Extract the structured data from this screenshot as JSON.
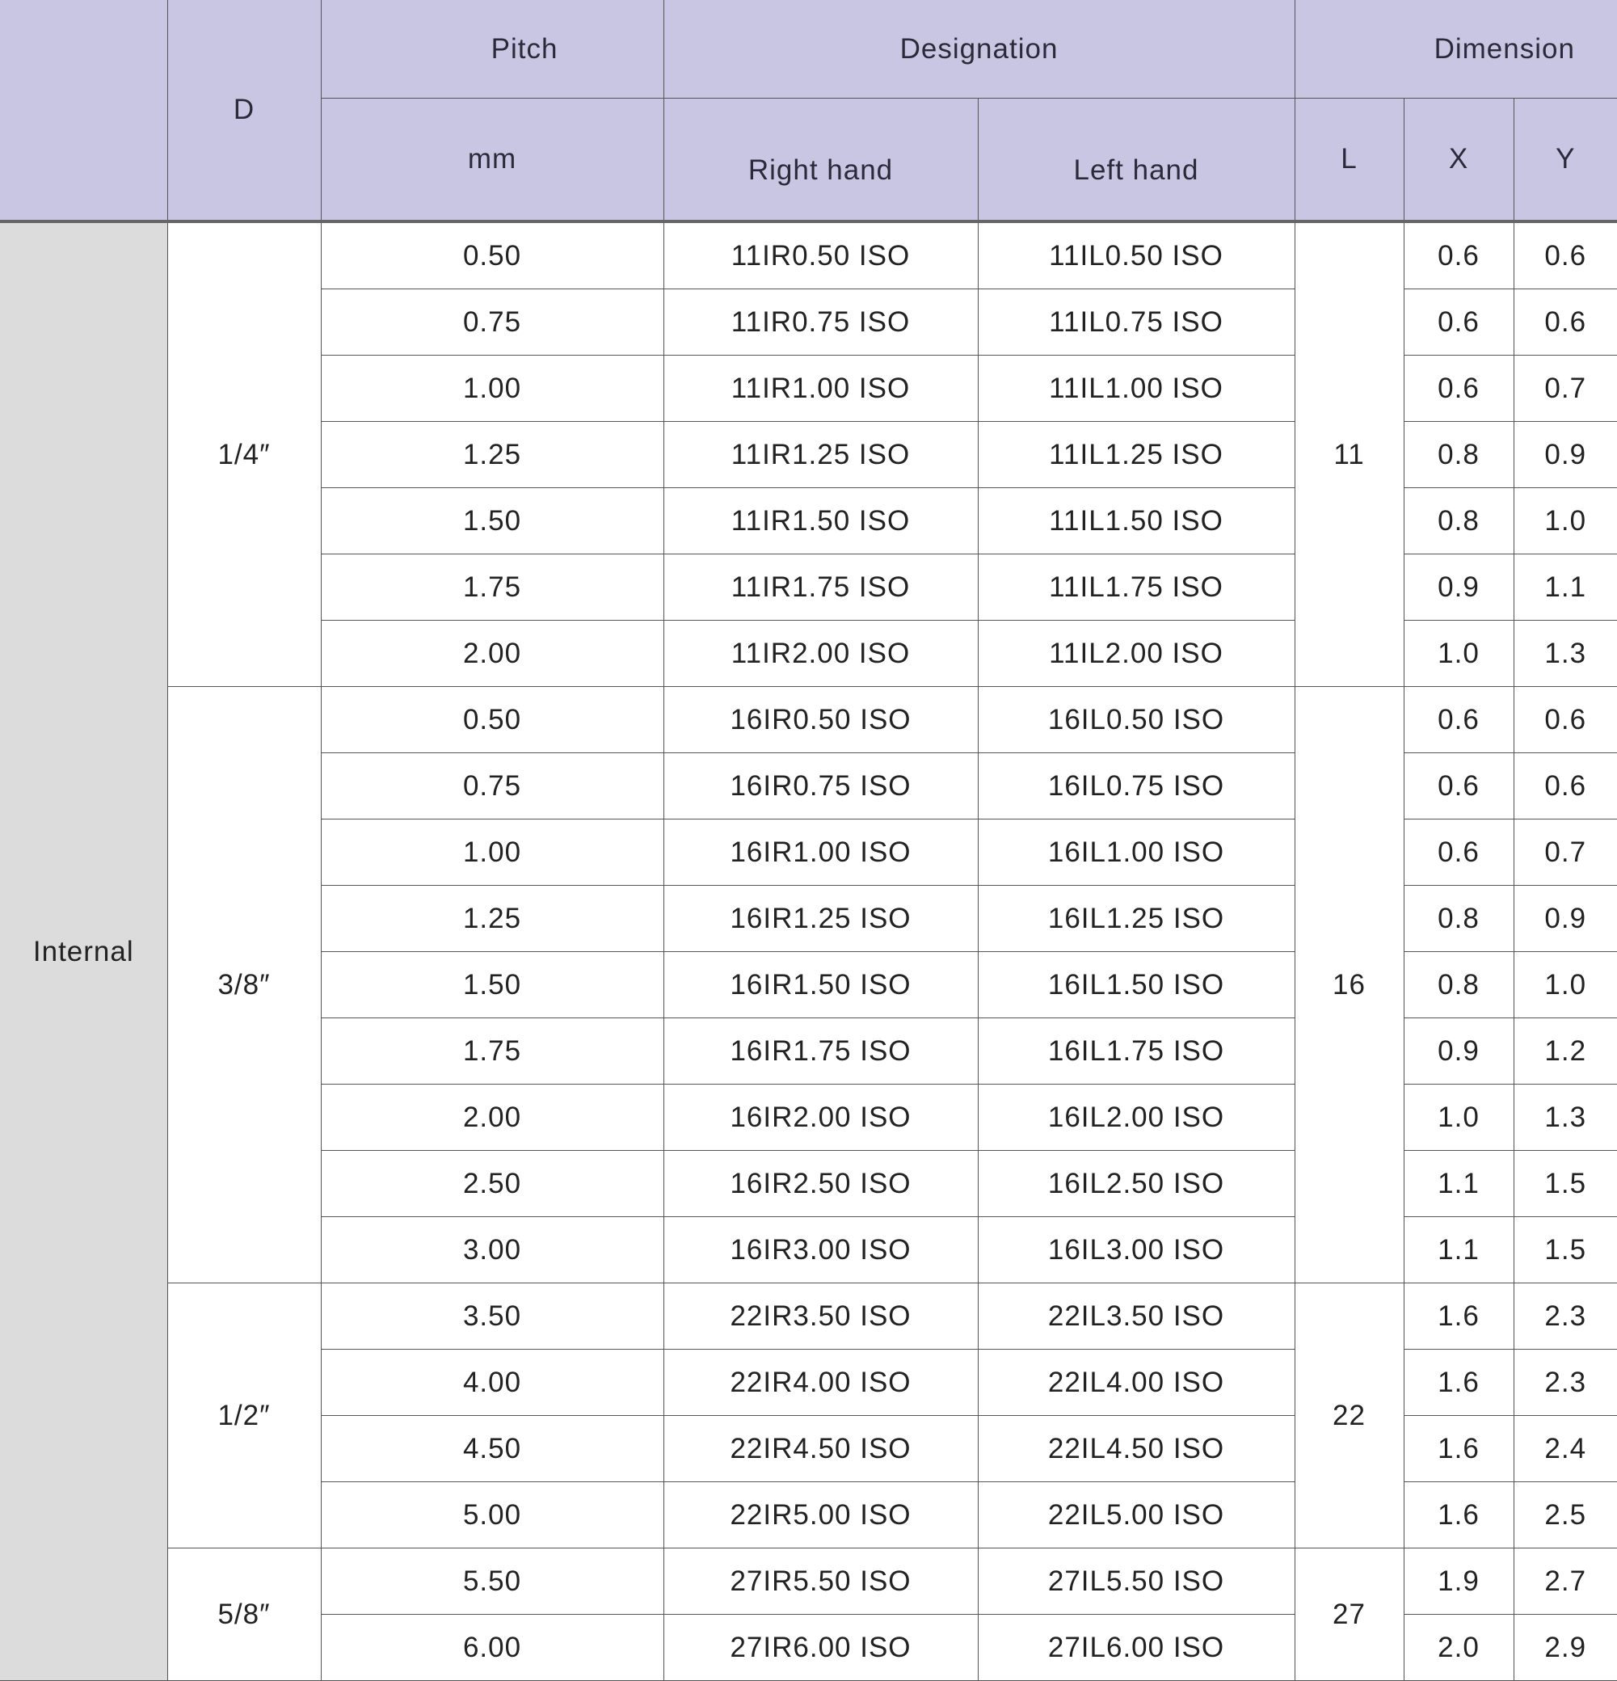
{
  "header": {
    "type_label": "",
    "d": "D",
    "pitch": "Pitch",
    "pitch_unit": "mm",
    "designation": "Designation",
    "right_hand": "Right hand",
    "left_hand": "Left hand",
    "dimension": "Dimension",
    "l": "L",
    "x": "X",
    "y": "Y"
  },
  "colors": {
    "header_bg": "#c9c6e3",
    "type_bg": "#dcdcdc",
    "border": "#555555"
  },
  "type": "Internal",
  "groups": [
    {
      "d": "1/4″",
      "l": "11",
      "rows": [
        {
          "pitch": "0.50",
          "right": "11IR0.50 ISO",
          "left": "11IL0.50 ISO",
          "x": "0.6",
          "y": "0.6"
        },
        {
          "pitch": "0.75",
          "right": "11IR0.75 ISO",
          "left": "11IL0.75 ISO",
          "x": "0.6",
          "y": "0.6"
        },
        {
          "pitch": "1.00",
          "right": "11IR1.00 ISO",
          "left": "11IL1.00 ISO",
          "x": "0.6",
          "y": "0.7"
        },
        {
          "pitch": "1.25",
          "right": "11IR1.25 ISO",
          "left": "11IL1.25 ISO",
          "x": "0.8",
          "y": "0.9"
        },
        {
          "pitch": "1.50",
          "right": "11IR1.50 ISO",
          "left": "11IL1.50 ISO",
          "x": "0.8",
          "y": "1.0"
        },
        {
          "pitch": "1.75",
          "right": "11IR1.75 ISO",
          "left": "11IL1.75 ISO",
          "x": "0.9",
          "y": "1.1"
        },
        {
          "pitch": "2.00",
          "right": "11IR2.00 ISO",
          "left": "11IL2.00 ISO",
          "x": "1.0",
          "y": "1.3"
        }
      ]
    },
    {
      "d": "3/8″",
      "l": "16",
      "rows": [
        {
          "pitch": "0.50",
          "right": "16IR0.50 ISO",
          "left": "16IL0.50 ISO",
          "x": "0.6",
          "y": "0.6"
        },
        {
          "pitch": "0.75",
          "right": "16IR0.75 ISO",
          "left": "16IL0.75 ISO",
          "x": "0.6",
          "y": "0.6"
        },
        {
          "pitch": "1.00",
          "right": "16IR1.00 ISO",
          "left": "16IL1.00 ISO",
          "x": "0.6",
          "y": "0.7"
        },
        {
          "pitch": "1.25",
          "right": "16IR1.25 ISO",
          "left": "16IL1.25 ISO",
          "x": "0.8",
          "y": "0.9"
        },
        {
          "pitch": "1.50",
          "right": "16IR1.50 ISO",
          "left": "16IL1.50 ISO",
          "x": "0.8",
          "y": "1.0"
        },
        {
          "pitch": "1.75",
          "right": "16IR1.75 ISO",
          "left": "16IL1.75 ISO",
          "x": "0.9",
          "y": "1.2"
        },
        {
          "pitch": "2.00",
          "right": "16IR2.00 ISO",
          "left": "16IL2.00 ISO",
          "x": "1.0",
          "y": "1.3"
        },
        {
          "pitch": "2.50",
          "right": "16IR2.50 ISO",
          "left": "16IL2.50 ISO",
          "x": "1.1",
          "y": "1.5"
        },
        {
          "pitch": "3.00",
          "right": "16IR3.00 ISO",
          "left": "16IL3.00 ISO",
          "x": "1.1",
          "y": "1.5"
        }
      ]
    },
    {
      "d": "1/2″",
      "l": "22",
      "rows": [
        {
          "pitch": "3.50",
          "right": "22IR3.50 ISO",
          "left": "22IL3.50 ISO",
          "x": "1.6",
          "y": "2.3"
        },
        {
          "pitch": "4.00",
          "right": "22IR4.00 ISO",
          "left": "22IL4.00 ISO",
          "x": "1.6",
          "y": "2.3"
        },
        {
          "pitch": "4.50",
          "right": "22IR4.50 ISO",
          "left": "22IL4.50 ISO",
          "x": "1.6",
          "y": "2.4"
        },
        {
          "pitch": "5.00",
          "right": "22IR5.00 ISO",
          "left": "22IL5.00 ISO",
          "x": "1.6",
          "y": "2.5"
        }
      ]
    },
    {
      "d": "5/8″",
      "l": "27",
      "rows": [
        {
          "pitch": "5.50",
          "right": "27IR5.50 ISO",
          "left": "27IL5.50 ISO",
          "x": "1.9",
          "y": "2.7"
        },
        {
          "pitch": "6.00",
          "right": "27IR6.00 ISO",
          "left": "27IL6.00 ISO",
          "x": "2.0",
          "y": "2.9"
        }
      ]
    }
  ]
}
